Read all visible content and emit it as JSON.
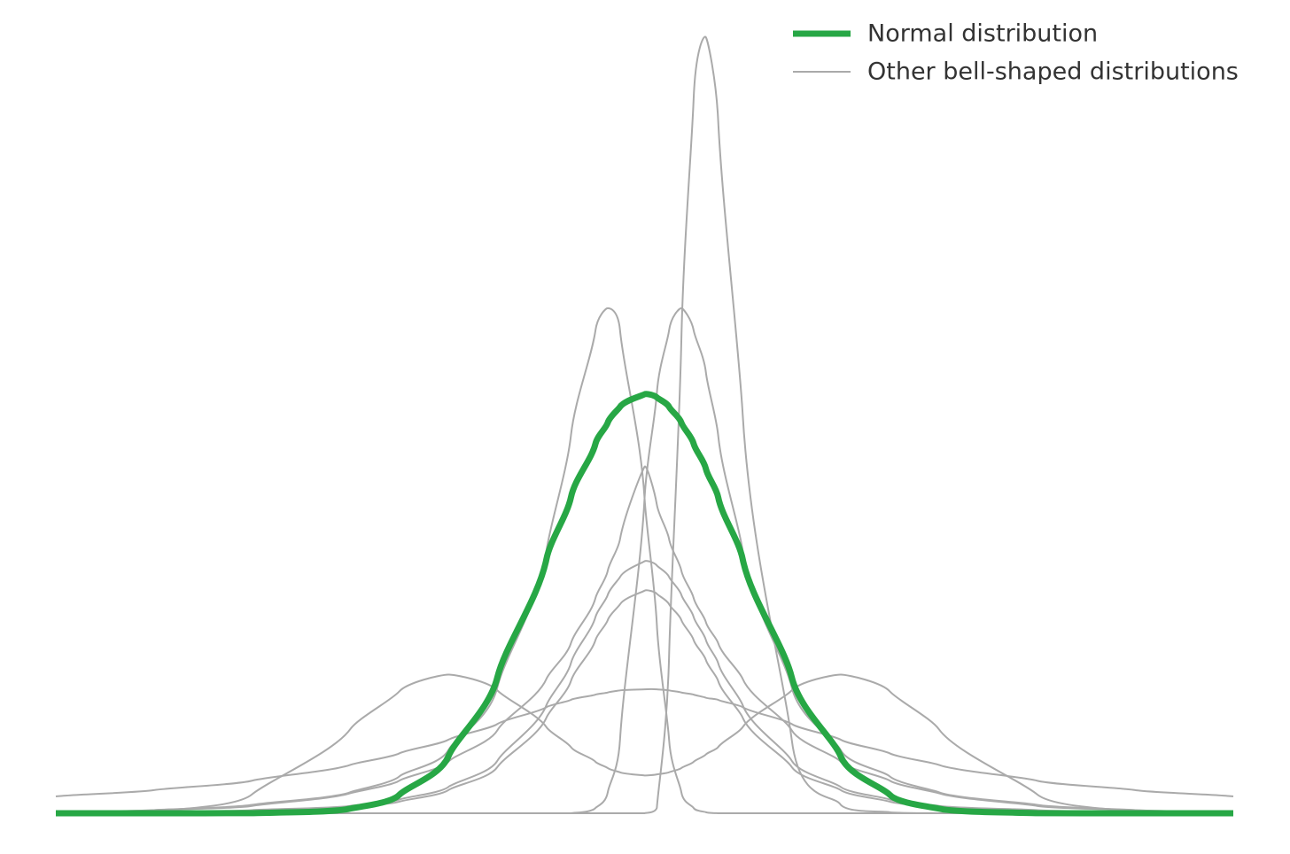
{
  "chart_data": {
    "type": "line",
    "x": [
      -6,
      -5,
      -4,
      -3,
      -2.5,
      -2,
      -1.5,
      -1,
      -0.75,
      -0.5,
      -0.375,
      -0.25,
      0,
      0.125,
      0.25,
      0.375,
      0.5,
      0.625,
      0.75,
      1,
      1.5,
      2,
      2.5,
      3,
      4,
      5,
      6
    ],
    "xlim": [
      -6,
      6
    ],
    "ylim": [
      0,
      0.75
    ],
    "legend": "upper right",
    "series": [
      {
        "name": "Other bell-shaped distributions",
        "color": "#aaaaaa",
        "width": 2,
        "values": [
          0.001,
          0.003,
          0.008,
          0.02,
          0.035,
          0.06,
          0.12,
          0.25,
          0.36,
          0.46,
          0.481,
          0.46,
          0.3,
          0.18,
          0.07,
          0.02,
          0.005,
          0.001,
          0,
          0,
          0,
          0,
          0,
          0,
          0,
          0,
          0
        ]
      },
      {
        "color": "#aaaaaa",
        "width": 2,
        "values": [
          0,
          0,
          0,
          0,
          0,
          0,
          0,
          0,
          0,
          0.005,
          0.02,
          0.07,
          0.3,
          0.4,
          0.46,
          0.481,
          0.46,
          0.42,
          0.36,
          0.25,
          0.12,
          0.06,
          0.035,
          0.02,
          0.008,
          0.003,
          0.001
        ]
      },
      {
        "color": "#aaaaaa",
        "width": 2,
        "values": [
          0,
          0,
          0,
          0,
          0,
          0,
          0,
          0,
          0,
          0,
          0,
          0,
          0,
          0.005,
          0.15,
          0.45,
          0.68,
          0.739,
          0.66,
          0.38,
          0.07,
          0.008,
          0.001,
          0,
          0,
          0,
          0
        ]
      },
      {
        "color": "#aaaaaa",
        "width": 2,
        "values": [
          0.001,
          0.003,
          0.007,
          0.019,
          0.031,
          0.049,
          0.079,
          0.128,
          0.162,
          0.205,
          0.231,
          0.261,
          0.33,
          0.294,
          0.261,
          0.231,
          0.205,
          0.182,
          0.162,
          0.128,
          0.079,
          0.049,
          0.031,
          0.019,
          0.007,
          0.003,
          0.001
        ]
      },
      {
        "color": "#aaaaaa",
        "width": 2,
        "values": [
          0,
          0.0015,
          0.018,
          0.08,
          0.116,
          0.132,
          0.117,
          0.082,
          0.063,
          0.049,
          0.043,
          0.039,
          0.036,
          0.037,
          0.039,
          0.043,
          0.049,
          0.056,
          0.063,
          0.082,
          0.117,
          0.132,
          0.116,
          0.08,
          0.018,
          0.0015,
          0
        ]
      },
      {
        "color": "#aaaaaa",
        "width": 2,
        "values": [
          0.016,
          0.022,
          0.031,
          0.046,
          0.057,
          0.07,
          0.085,
          0.101,
          0.108,
          0.113,
          0.115,
          0.117,
          0.118,
          0.118,
          0.117,
          0.115,
          0.113,
          0.11,
          0.108,
          0.101,
          0.085,
          0.07,
          0.057,
          0.046,
          0.031,
          0.022,
          0.016
        ]
      },
      {
        "color": "#aaaaaa",
        "width": 2,
        "values": [
          0.001,
          0.001,
          0.003,
          0.007,
          0.013,
          0.025,
          0.05,
          0.103,
          0.143,
          0.187,
          0.208,
          0.225,
          0.24,
          0.236,
          0.225,
          0.208,
          0.187,
          0.165,
          0.143,
          0.103,
          0.05,
          0.025,
          0.013,
          0.007,
          0.003,
          0.001,
          0.001
        ]
      },
      {
        "color": "#aaaaaa",
        "width": 2,
        "values": [
          0.001,
          0.001,
          0.002,
          0.006,
          0.011,
          0.022,
          0.044,
          0.091,
          0.126,
          0.165,
          0.184,
          0.199,
          0.212,
          0.209,
          0.199,
          0.184,
          0.165,
          0.146,
          0.126,
          0.091,
          0.044,
          0.022,
          0.011,
          0.006,
          0.002,
          0.001,
          0.001
        ]
      },
      {
        "name": "Normal distribution",
        "color": "#27a745",
        "width": 7,
        "values": [
          0,
          0,
          0.0001,
          0.0044,
          0.0175,
          0.054,
          0.1295,
          0.242,
          0.301,
          0.352,
          0.372,
          0.387,
          0.399,
          0.396,
          0.387,
          0.372,
          0.352,
          0.328,
          0.301,
          0.242,
          0.1295,
          0.054,
          0.0175,
          0.0044,
          0.0001,
          0,
          0
        ]
      }
    ]
  }
}
